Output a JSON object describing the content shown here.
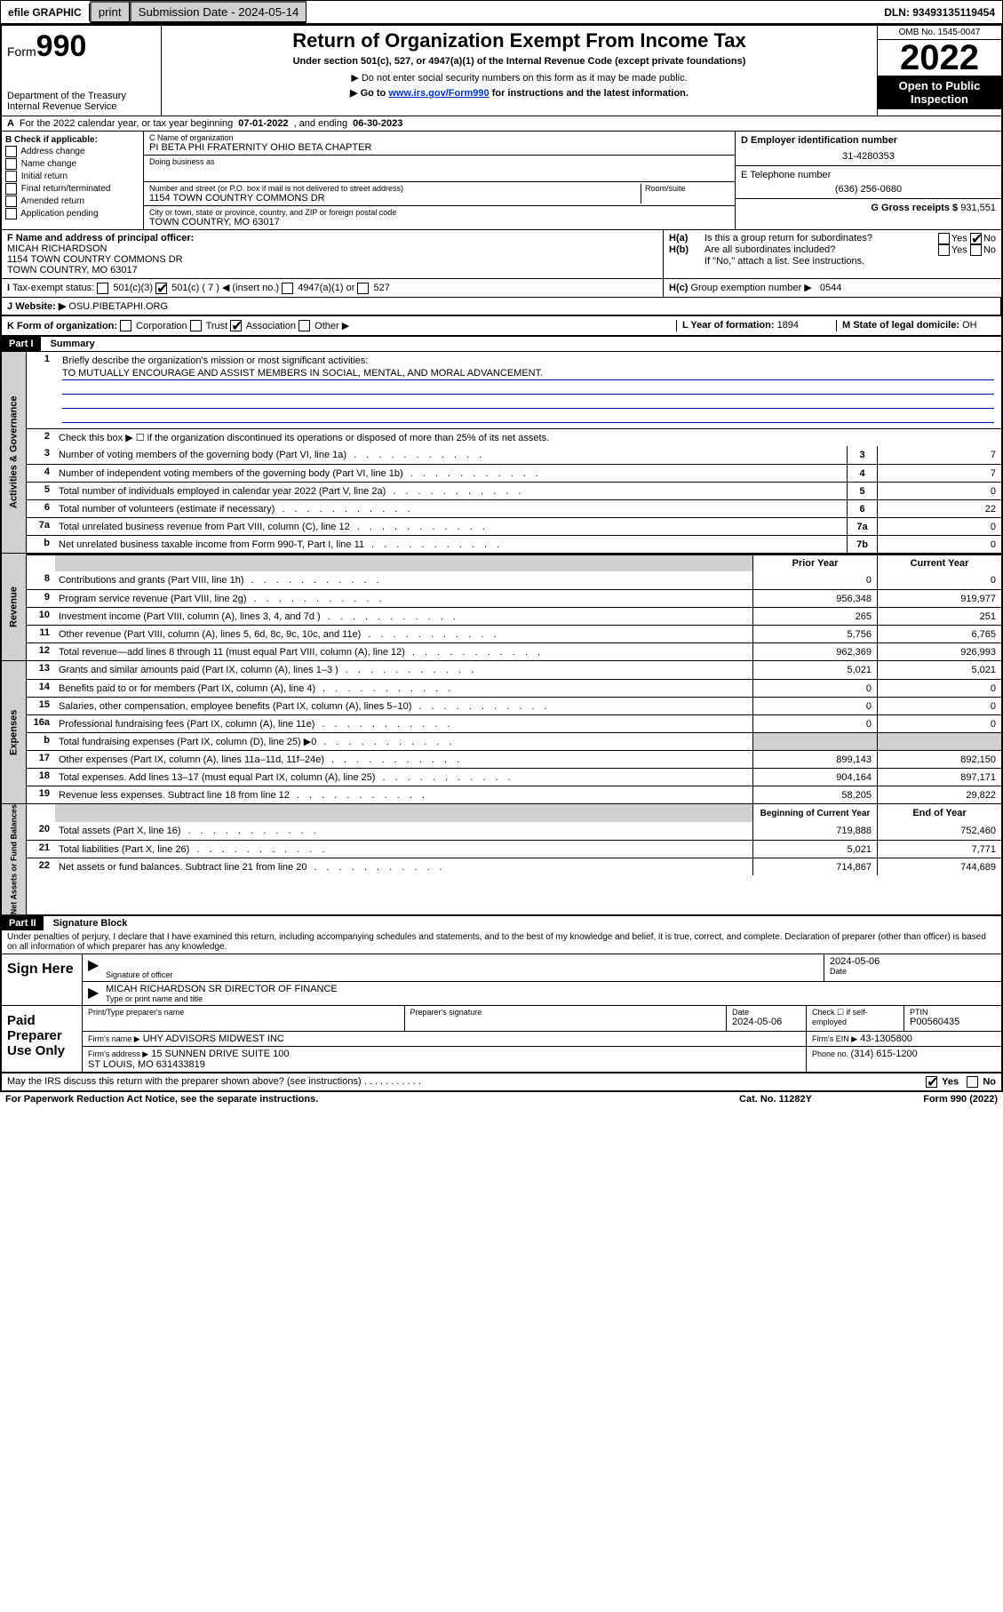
{
  "topbar": {
    "efile": "efile GRAPHIC",
    "print": "print",
    "submission": "Submission Date - 2024-05-14",
    "dln": "DLN: 93493135119454"
  },
  "header": {
    "form_prefix": "Form",
    "form_num": "990",
    "dept": "Department of the Treasury\nInternal Revenue Service",
    "title": "Return of Organization Exempt From Income Tax",
    "subtitle": "Under section 501(c), 527, or 4947(a)(1) of the Internal Revenue Code (except private foundations)",
    "warn1": "▶ Do not enter social security numbers on this form as it may be made public.",
    "warn2_pre": "▶ Go to ",
    "warn2_link": "www.irs.gov/Form990",
    "warn2_post": " for instructions and the latest information.",
    "omb": "OMB No. 1545-0047",
    "year": "2022",
    "open": "Open to Public Inspection"
  },
  "A": {
    "pre": "For the 2022 calendar year, or tax year beginning ",
    "begin": "07-01-2022",
    "mid": " , and ending ",
    "end": "06-30-2023"
  },
  "B": {
    "title": "B Check if applicable:",
    "opts": [
      "Address change",
      "Name change",
      "Initial return",
      "Final return/terminated",
      "Amended return",
      "Application pending"
    ]
  },
  "C": {
    "name_lbl": "C Name of organization",
    "name": "PI BETA PHI FRATERNITY OHIO BETA CHAPTER",
    "dba_lbl": "Doing business as",
    "dba": "",
    "addr_lbl": "Number and street (or P.O. box if mail is not delivered to street address)",
    "room_lbl": "Room/suite",
    "addr": "1154 TOWN COUNTRY COMMONS DR",
    "city_lbl": "City or town, state or province, country, and ZIP or foreign postal code",
    "city": "TOWN COUNTRY, MO  63017"
  },
  "D": {
    "lbl": "D Employer identification number",
    "val": "31-4280353"
  },
  "E": {
    "lbl": "E Telephone number",
    "val": "(636) 256-0680"
  },
  "G": {
    "lbl": "G Gross receipts $ ",
    "val": "931,551"
  },
  "F": {
    "lbl": "F Name and address of principal officer:",
    "name": "MICAH RICHARDSON",
    "addr": "1154 TOWN COUNTRY COMMONS DR\nTOWN COUNTRY, MO  63017"
  },
  "H": {
    "a": "Is this a group return for subordinates?",
    "b": "Are all subordinates included?",
    "b_note": "If \"No,\" attach a list. See instructions.",
    "c": "Group exemption number ▶",
    "c_val": "0544",
    "yes": "Yes",
    "no": "No"
  },
  "I": {
    "lbl": "Tax-exempt status:",
    "c3": "501(c)(3)",
    "c_pre": "501(c) ( 7 ) ◀ (insert no.)",
    "a4947": "4947(a)(1) or",
    "s527": "527"
  },
  "J": {
    "lbl": "Website: ▶",
    "val": "OSU.PIBETAPHI.ORG"
  },
  "K": {
    "lbl": "K Form of organization:",
    "opts": [
      "Corporation",
      "Trust",
      "Association",
      "Other ▶"
    ],
    "checked_idx": 2
  },
  "L": {
    "lbl": "L Year of formation: ",
    "val": "1894"
  },
  "M": {
    "lbl": "M State of legal domicile: ",
    "val": "OH"
  },
  "part1": {
    "hdr": "Part I",
    "title": "Summary",
    "line1_lbl": "Briefly describe the organization's mission or most significant activities:",
    "mission": "TO MUTUALLY ENCOURAGE AND ASSIST MEMBERS IN SOCIAL, MENTAL, AND MORAL ADVANCEMENT.",
    "line2": "Check this box ▶ ☐  if the organization discontinued its operations or disposed of more than 25% of its net assets.",
    "gov_rows": [
      {
        "n": "3",
        "d": "Number of voting members of the governing body (Part VI, line 1a)",
        "c": "3",
        "v": "7"
      },
      {
        "n": "4",
        "d": "Number of independent voting members of the governing body (Part VI, line 1b)",
        "c": "4",
        "v": "7"
      },
      {
        "n": "5",
        "d": "Total number of individuals employed in calendar year 2022 (Part V, line 2a)",
        "c": "5",
        "v": "0"
      },
      {
        "n": "6",
        "d": "Total number of volunteers (estimate if necessary)",
        "c": "6",
        "v": "22"
      },
      {
        "n": "7a",
        "d": "Total unrelated business revenue from Part VIII, column (C), line 12",
        "c": "7a",
        "v": "0"
      },
      {
        "n": "b",
        "d": "Net unrelated business taxable income from Form 990-T, Part I, line 11",
        "c": "7b",
        "v": "0"
      }
    ],
    "col_prior": "Prior Year",
    "col_curr": "Current Year",
    "rev_rows": [
      {
        "n": "8",
        "d": "Contributions and grants (Part VIII, line 1h)",
        "p": "0",
        "c": "0"
      },
      {
        "n": "9",
        "d": "Program service revenue (Part VIII, line 2g)",
        "p": "956,348",
        "c": "919,977"
      },
      {
        "n": "10",
        "d": "Investment income (Part VIII, column (A), lines 3, 4, and 7d )",
        "p": "265",
        "c": "251"
      },
      {
        "n": "11",
        "d": "Other revenue (Part VIII, column (A), lines 5, 6d, 8c, 9c, 10c, and 11e)",
        "p": "5,756",
        "c": "6,765"
      },
      {
        "n": "12",
        "d": "Total revenue—add lines 8 through 11 (must equal Part VIII, column (A), line 12)",
        "p": "962,369",
        "c": "926,993"
      }
    ],
    "exp_rows": [
      {
        "n": "13",
        "d": "Grants and similar amounts paid (Part IX, column (A), lines 1–3 )",
        "p": "5,021",
        "c": "5,021"
      },
      {
        "n": "14",
        "d": "Benefits paid to or for members (Part IX, column (A), line 4)",
        "p": "0",
        "c": "0"
      },
      {
        "n": "15",
        "d": "Salaries, other compensation, employee benefits (Part IX, column (A), lines 5–10)",
        "p": "0",
        "c": "0"
      },
      {
        "n": "16a",
        "d": "Professional fundraising fees (Part IX, column (A), line 11e)",
        "p": "0",
        "c": "0"
      },
      {
        "n": "b",
        "d": "Total fundraising expenses (Part IX, column (D), line 25) ▶0",
        "p": "",
        "c": "",
        "shade": true
      },
      {
        "n": "17",
        "d": "Other expenses (Part IX, column (A), lines 11a–11d, 11f–24e)",
        "p": "899,143",
        "c": "892,150"
      },
      {
        "n": "18",
        "d": "Total expenses. Add lines 13–17 (must equal Part IX, column (A), line 25)",
        "p": "904,164",
        "c": "897,171"
      },
      {
        "n": "19",
        "d": "Revenue less expenses. Subtract line 18 from line 12",
        "p": "58,205",
        "c": "29,822"
      }
    ],
    "col_boy": "Beginning of Current Year",
    "col_eoy": "End of Year",
    "na_rows": [
      {
        "n": "20",
        "d": "Total assets (Part X, line 16)",
        "p": "719,888",
        "c": "752,460"
      },
      {
        "n": "21",
        "d": "Total liabilities (Part X, line 26)",
        "p": "5,021",
        "c": "7,771"
      },
      {
        "n": "22",
        "d": "Net assets or fund balances. Subtract line 21 from line 20",
        "p": "714,867",
        "c": "744,689"
      }
    ]
  },
  "part2": {
    "hdr": "Part II",
    "title": "Signature Block",
    "decl": "Under penalties of perjury, I declare that I have examined this return, including accompanying schedules and statements, and to the best of my knowledge and belief, it is true, correct, and complete. Declaration of preparer (other than officer) is based on all information of which preparer has any knowledge.",
    "sign_here": "Sign Here",
    "sig_officer": "Signature of officer",
    "sig_date": "2024-05-06",
    "date_lbl": "Date",
    "officer_name": "MICAH RICHARDSON  SR DIRECTOR OF FINANCE",
    "type_name": "Type or print name and title",
    "paid": "Paid Preparer Use Only",
    "prep_name_lbl": "Print/Type preparer's name",
    "prep_sig_lbl": "Preparer's signature",
    "prep_date": "2024-05-06",
    "self_emp": "Check ☐ if self-employed",
    "ptin_lbl": "PTIN",
    "ptin": "P00560435",
    "firm_name_lbl": "Firm's name   ▶",
    "firm_name": "UHY ADVISORS MIDWEST INC",
    "firm_ein_lbl": "Firm's EIN ▶",
    "firm_ein": "43-1305800",
    "firm_addr_lbl": "Firm's address ▶",
    "firm_addr": "15 SUNNEN DRIVE SUITE 100\nST LOUIS, MO  631433819",
    "phone_lbl": "Phone no. ",
    "phone": "(314) 615-1200",
    "may_irs": "May the IRS discuss this return with the preparer shown above? (see instructions)"
  },
  "footer": {
    "pra": "For Paperwork Reduction Act Notice, see the separate instructions.",
    "cat": "Cat. No. 11282Y",
    "form": "Form 990 (2022)"
  }
}
